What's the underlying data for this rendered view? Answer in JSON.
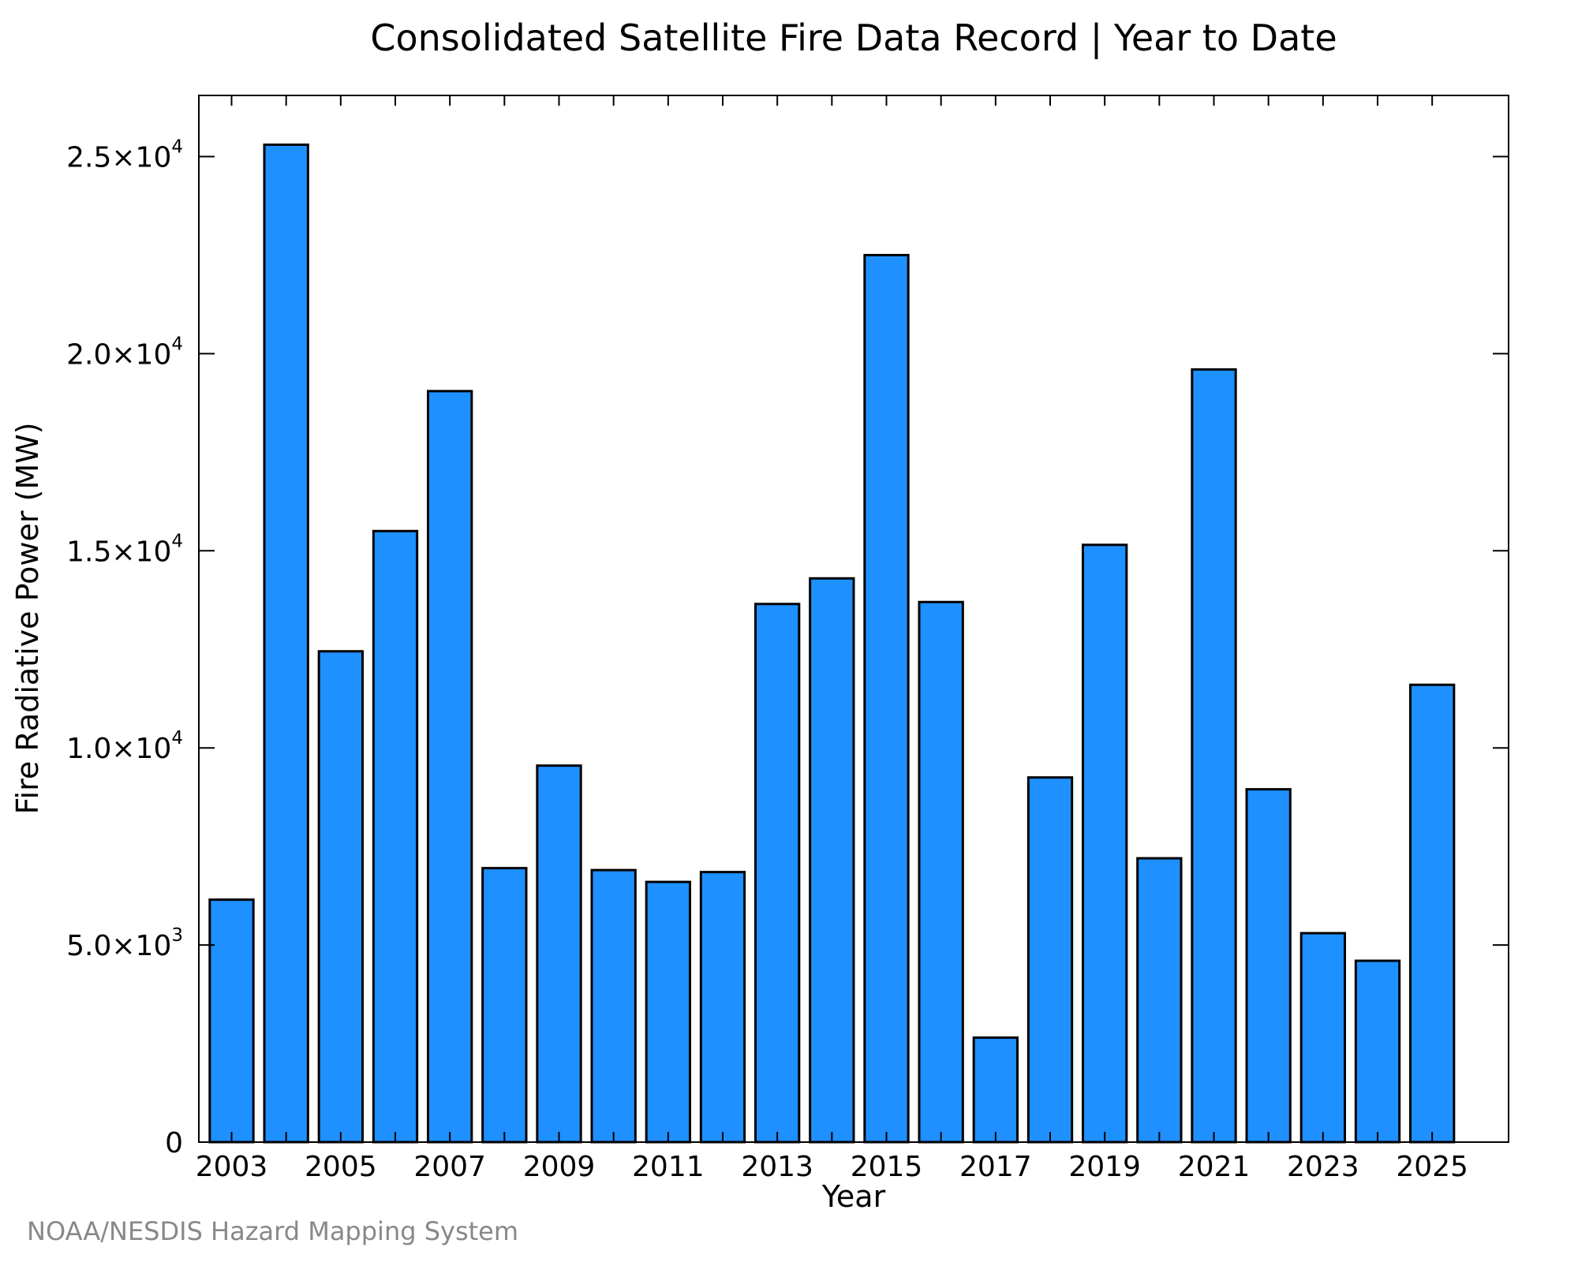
{
  "chart_data": {
    "type": "bar",
    "title": "Consolidated Satellite Fire Data Record | Year to Date",
    "xlabel": "Year",
    "ylabel": "Fire Radiative Power (MW)",
    "categories": [
      2003,
      2004,
      2005,
      2006,
      2007,
      2008,
      2009,
      2010,
      2011,
      2012,
      2013,
      2014,
      2015,
      2016,
      2017,
      2018,
      2019,
      2020,
      2021,
      2022,
      2023,
      2024,
      2025
    ],
    "values": [
      6150,
      25300,
      12450,
      15500,
      19050,
      6950,
      9550,
      6900,
      6600,
      6850,
      13650,
      14300,
      22500,
      13700,
      2650,
      9250,
      15150,
      7200,
      19600,
      8950,
      5300,
      4600,
      11600
    ],
    "x_tick_labels": [
      "2003",
      "2005",
      "2007",
      "2009",
      "2011",
      "2013",
      "2015",
      "2017",
      "2019",
      "2021",
      "2023",
      "2025"
    ],
    "y_ticks": [
      {
        "value": 0,
        "mantissa": "0",
        "exponent": ""
      },
      {
        "value": 5000,
        "mantissa": "5.0×10",
        "exponent": "3"
      },
      {
        "value": 10000,
        "mantissa": "1.0×10",
        "exponent": "4"
      },
      {
        "value": 15000,
        "mantissa": "1.5×10",
        "exponent": "4"
      },
      {
        "value": 20000,
        "mantissa": "2.0×10",
        "exponent": "4"
      },
      {
        "value": 25000,
        "mantissa": "2.5×10",
        "exponent": "4"
      }
    ],
    "xlim": [
      2002.4,
      2026.4
    ],
    "ylim": [
      0,
      26550
    ],
    "grid": false,
    "bar_color": "#1E90FF",
    "edge_color": "#000000"
  },
  "credit": "NOAA/NESDIS Hazard Mapping System"
}
